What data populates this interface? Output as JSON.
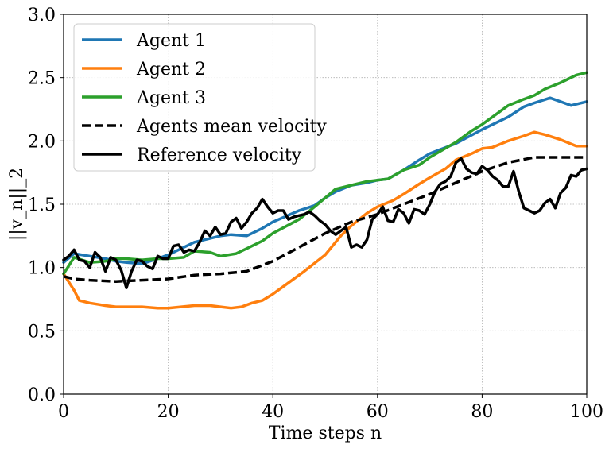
{
  "chart_data": {
    "type": "line",
    "xlabel": "Time steps n",
    "ylabel": "||v_n||_2",
    "xlim": [
      0,
      100
    ],
    "ylim": [
      0,
      3
    ],
    "xticks": [
      0,
      20,
      40,
      60,
      80,
      100
    ],
    "yticks": [
      0.0,
      0.5,
      1.0,
      1.5,
      2.0,
      2.5,
      3.0
    ],
    "xtick_labels": [
      "0",
      "20",
      "40",
      "60",
      "80",
      "100"
    ],
    "ytick_labels": [
      "0.0",
      "0.5",
      "1.0",
      "1.5",
      "2.0",
      "2.5",
      "3.0"
    ],
    "grid": true,
    "legend_position": "top-left",
    "series": [
      {
        "name": "Agent 1",
        "color": "#1f77b4",
        "dash": "solid",
        "x": [
          0,
          2,
          5,
          8,
          10,
          12,
          15,
          18,
          20,
          25,
          30,
          32,
          35,
          38,
          40,
          45,
          48,
          50,
          52,
          55,
          58,
          60,
          62,
          65,
          68,
          70,
          75,
          80,
          85,
          88,
          90,
          93,
          95,
          97,
          100
        ],
        "y": [
          1.04,
          1.11,
          1.09,
          1.07,
          1.05,
          1.04,
          1.03,
          1.07,
          1.1,
          1.2,
          1.25,
          1.26,
          1.25,
          1.31,
          1.36,
          1.45,
          1.49,
          1.55,
          1.6,
          1.65,
          1.67,
          1.69,
          1.7,
          1.77,
          1.85,
          1.9,
          1.98,
          2.09,
          2.19,
          2.27,
          2.3,
          2.34,
          2.31,
          2.28,
          2.31
        ]
      },
      {
        "name": "Agent 2",
        "color": "#ff7f0e",
        "dash": "solid",
        "x": [
          0,
          2,
          3,
          5,
          8,
          10,
          15,
          18,
          20,
          25,
          28,
          30,
          32,
          34,
          36,
          38,
          40,
          43,
          46,
          50,
          53,
          55,
          58,
          60,
          63,
          65,
          68,
          70,
          73,
          75,
          78,
          80,
          82,
          85,
          88,
          90,
          92,
          95,
          98,
          100
        ],
        "y": [
          0.95,
          0.82,
          0.74,
          0.72,
          0.7,
          0.69,
          0.69,
          0.68,
          0.68,
          0.7,
          0.7,
          0.69,
          0.68,
          0.69,
          0.72,
          0.74,
          0.79,
          0.88,
          0.97,
          1.1,
          1.25,
          1.33,
          1.43,
          1.48,
          1.53,
          1.58,
          1.66,
          1.71,
          1.78,
          1.85,
          1.9,
          1.94,
          1.95,
          2.0,
          2.04,
          2.07,
          2.05,
          2.01,
          1.96,
          1.96
        ]
      },
      {
        "name": "Agent 3",
        "color": "#2ca02c",
        "dash": "solid",
        "x": [
          0,
          2,
          5,
          8,
          10,
          12,
          15,
          18,
          20,
          23,
          25,
          28,
          30,
          33,
          35,
          38,
          40,
          45,
          48,
          50,
          52,
          55,
          58,
          60,
          62,
          65,
          68,
          70,
          75,
          78,
          80,
          83,
          85,
          88,
          90,
          92,
          95,
          98,
          100
        ],
        "y": [
          0.95,
          1.08,
          1.04,
          1.05,
          1.07,
          1.07,
          1.06,
          1.07,
          1.07,
          1.08,
          1.13,
          1.12,
          1.09,
          1.11,
          1.15,
          1.21,
          1.27,
          1.38,
          1.48,
          1.55,
          1.62,
          1.65,
          1.68,
          1.69,
          1.7,
          1.77,
          1.81,
          1.87,
          1.99,
          2.08,
          2.13,
          2.22,
          2.28,
          2.33,
          2.36,
          2.41,
          2.46,
          2.52,
          2.54
        ]
      },
      {
        "name": "Agents mean velocity",
        "color": "#000000",
        "dash": "dashed",
        "x": [
          0,
          2,
          5,
          10,
          15,
          20,
          25,
          30,
          35,
          40,
          45,
          50,
          55,
          60,
          65,
          70,
          75,
          80,
          85,
          90,
          95,
          100
        ],
        "y": [
          0.93,
          0.91,
          0.9,
          0.89,
          0.9,
          0.91,
          0.94,
          0.95,
          0.97,
          1.05,
          1.16,
          1.27,
          1.36,
          1.42,
          1.5,
          1.58,
          1.67,
          1.76,
          1.83,
          1.87,
          1.87,
          1.87
        ]
      },
      {
        "name": "Reference velocity",
        "color": "#000000",
        "dash": "solid",
        "x": [
          0,
          1,
          2,
          3,
          4,
          5,
          6,
          7,
          8,
          9,
          10,
          11,
          12,
          13,
          14,
          15,
          16,
          17,
          18,
          19,
          20,
          21,
          22,
          23,
          24,
          25,
          26,
          27,
          28,
          29,
          30,
          31,
          32,
          33,
          34,
          35,
          36,
          37,
          38,
          39,
          40,
          41,
          42,
          43,
          44,
          45,
          46,
          47,
          48,
          49,
          50,
          51,
          52,
          53,
          54,
          55,
          56,
          57,
          58,
          59,
          60,
          61,
          62,
          63,
          64,
          65,
          66,
          67,
          68,
          69,
          70,
          71,
          72,
          73,
          74,
          75,
          76,
          77,
          78,
          79,
          80,
          81,
          82,
          83,
          84,
          85,
          86,
          87,
          88,
          89,
          90,
          91,
          92,
          93,
          94,
          95,
          96,
          97,
          98,
          99,
          100
        ],
        "y": [
          1.06,
          1.09,
          1.14,
          1.06,
          1.05,
          1.0,
          1.12,
          1.08,
          0.97,
          1.08,
          1.06,
          0.98,
          0.84,
          0.97,
          1.06,
          1.05,
          1.01,
          0.99,
          1.09,
          1.07,
          1.07,
          1.17,
          1.18,
          1.12,
          1.14,
          1.13,
          1.2,
          1.29,
          1.25,
          1.32,
          1.26,
          1.27,
          1.36,
          1.39,
          1.31,
          1.36,
          1.43,
          1.47,
          1.54,
          1.48,
          1.43,
          1.45,
          1.45,
          1.38,
          1.4,
          1.41,
          1.42,
          1.44,
          1.41,
          1.37,
          1.34,
          1.29,
          1.26,
          1.29,
          1.32,
          1.16,
          1.18,
          1.16,
          1.22,
          1.38,
          1.42,
          1.48,
          1.37,
          1.36,
          1.46,
          1.43,
          1.35,
          1.46,
          1.45,
          1.42,
          1.5,
          1.6,
          1.66,
          1.68,
          1.72,
          1.83,
          1.86,
          1.78,
          1.75,
          1.74,
          1.8,
          1.77,
          1.72,
          1.69,
          1.64,
          1.64,
          1.76,
          1.6,
          1.47,
          1.45,
          1.43,
          1.45,
          1.51,
          1.54,
          1.47,
          1.59,
          1.63,
          1.73,
          1.72,
          1.77,
          1.78
        ]
      }
    ]
  }
}
